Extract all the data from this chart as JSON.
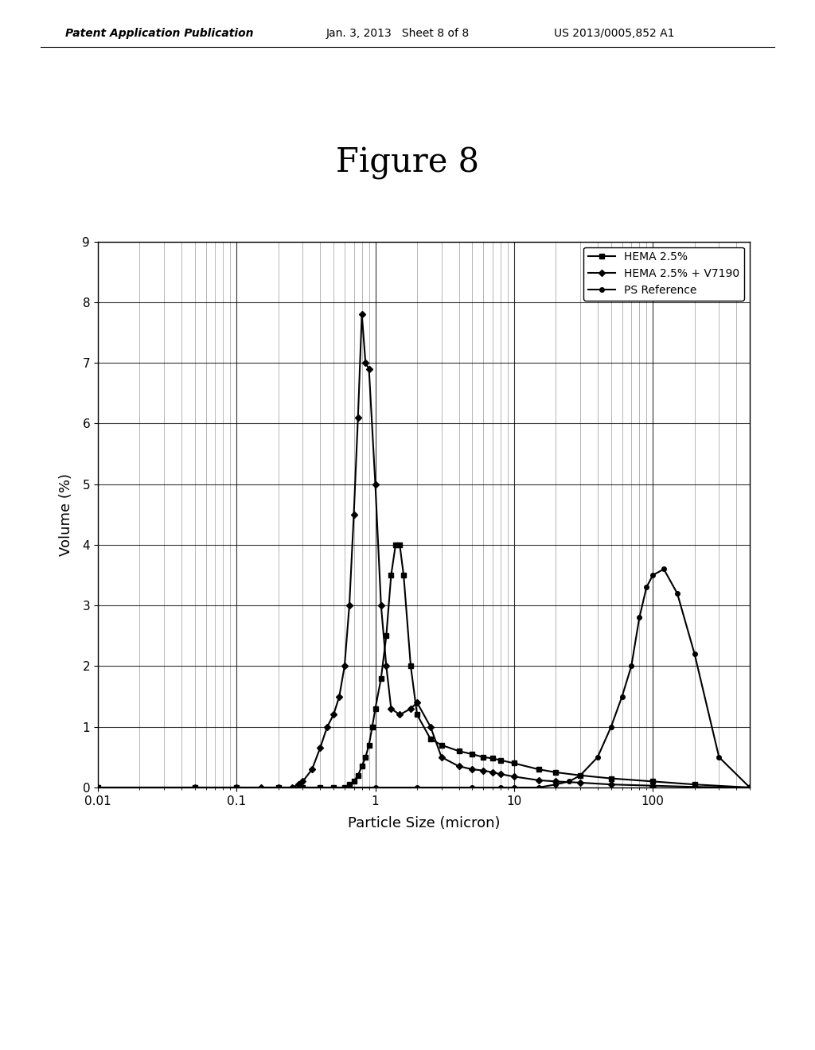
{
  "title": "Figure 8",
  "xlabel": "Particle Size (micron)",
  "ylabel": "Volume (%)",
  "ylim": [
    0,
    9
  ],
  "xlim": [
    0.01,
    500
  ],
  "yticks": [
    0,
    1,
    2,
    3,
    4,
    5,
    6,
    7,
    8,
    9
  ],
  "legend_labels": [
    "HEMA 2.5%",
    "HEMA 2.5% + V7190",
    "PS Reference"
  ],
  "background_color": "#ffffff",
  "hema_x": [
    0.01,
    0.05,
    0.1,
    0.2,
    0.3,
    0.4,
    0.5,
    0.6,
    0.65,
    0.7,
    0.75,
    0.8,
    0.85,
    0.9,
    0.95,
    1.0,
    1.1,
    1.2,
    1.3,
    1.4,
    1.5,
    1.6,
    1.8,
    2.0,
    2.5,
    3.0,
    4.0,
    5.0,
    6.0,
    7.0,
    8.0,
    10.0,
    15.0,
    20.0,
    30.0,
    50.0,
    100.0,
    200.0,
    500.0
  ],
  "hema_y": [
    0.0,
    0.0,
    0.0,
    0.0,
    0.0,
    0.0,
    0.0,
    0.0,
    0.05,
    0.1,
    0.2,
    0.35,
    0.5,
    0.7,
    1.0,
    1.3,
    1.8,
    2.5,
    3.5,
    4.0,
    4.0,
    3.5,
    2.0,
    1.2,
    0.8,
    0.7,
    0.6,
    0.55,
    0.5,
    0.48,
    0.45,
    0.4,
    0.3,
    0.25,
    0.2,
    0.15,
    0.1,
    0.05,
    0.0
  ],
  "hema_v7190_x": [
    0.01,
    0.05,
    0.1,
    0.15,
    0.2,
    0.25,
    0.28,
    0.3,
    0.35,
    0.4,
    0.45,
    0.5,
    0.55,
    0.6,
    0.65,
    0.7,
    0.75,
    0.8,
    0.85,
    0.9,
    1.0,
    1.1,
    1.2,
    1.3,
    1.5,
    1.8,
    2.0,
    2.5,
    3.0,
    4.0,
    5.0,
    6.0,
    7.0,
    8.0,
    10.0,
    15.0,
    20.0,
    30.0,
    50.0,
    100.0,
    200.0,
    500.0
  ],
  "hema_v7190_y": [
    0.0,
    0.0,
    0.0,
    0.0,
    0.0,
    0.0,
    0.05,
    0.1,
    0.3,
    0.65,
    1.0,
    1.2,
    1.5,
    2.0,
    3.0,
    4.5,
    6.1,
    7.8,
    7.0,
    6.9,
    5.0,
    3.0,
    2.0,
    1.3,
    1.2,
    1.3,
    1.4,
    1.0,
    0.5,
    0.35,
    0.3,
    0.28,
    0.25,
    0.22,
    0.18,
    0.12,
    0.1,
    0.08,
    0.05,
    0.03,
    0.01,
    0.0
  ],
  "ps_ref_x": [
    0.01,
    0.05,
    0.1,
    0.2,
    0.5,
    1.0,
    2.0,
    5.0,
    8.0,
    10.0,
    15.0,
    20.0,
    25.0,
    30.0,
    40.0,
    50.0,
    60.0,
    70.0,
    80.0,
    90.0,
    100.0,
    120.0,
    150.0,
    200.0,
    300.0,
    500.0
  ],
  "ps_ref_y": [
    0.0,
    0.0,
    0.0,
    0.0,
    0.0,
    0.0,
    0.0,
    0.0,
    0.0,
    0.0,
    0.0,
    0.05,
    0.1,
    0.2,
    0.5,
    1.0,
    1.5,
    2.0,
    2.8,
    3.3,
    3.5,
    3.6,
    3.2,
    2.2,
    0.5,
    0.0
  ],
  "header_left": "Patent Application Publication",
  "header_mid": "Jan. 3, 2013   Sheet 8 of 8",
  "header_right": "US 2013/0005,852 A1"
}
